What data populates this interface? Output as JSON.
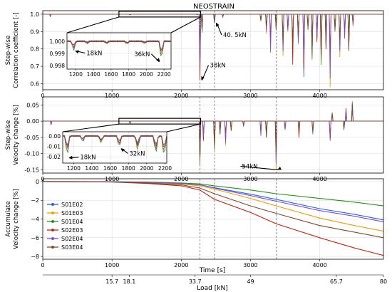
{
  "chart_data": [
    {
      "type": "line",
      "title": "NEOSTRAIN",
      "ylabel_lines": [
        "Step-wise",
        "Correlation coefficient [-]"
      ],
      "xlim": [
        0,
        4920
      ],
      "ylim": [
        0.565,
        1.02
      ],
      "xticks": [
        0,
        1000,
        2000,
        3000,
        4000
      ],
      "yticks": [
        0.6,
        0.7,
        0.8,
        0.9,
        1.0
      ],
      "ytick_labels": [
        "0.6",
        "0.7",
        "0.8",
        "0.9",
        "1.0"
      ],
      "grid": true,
      "dashed_vlines": [
        2270,
        2480,
        3370
      ],
      "baseline": 1.0,
      "series_colors": [
        "#2b5fd0",
        "#e0a010",
        "#2e8b22",
        "#b02a1a",
        "#7a4fc2",
        "#7a4a2e"
      ],
      "spikes": [
        {
          "x": 110,
          "y": 0.985
        },
        {
          "x": 1260,
          "y": 0.993
        },
        {
          "x": 2230,
          "y": 0.996
        },
        {
          "x": 2270,
          "y": 0.62
        },
        {
          "x": 2300,
          "y": 0.88
        },
        {
          "x": 2480,
          "y": 0.95
        },
        {
          "x": 2600,
          "y": 0.98
        },
        {
          "x": 3150,
          "y": 0.96
        },
        {
          "x": 3230,
          "y": 0.87
        },
        {
          "x": 3290,
          "y": 0.78
        },
        {
          "x": 3370,
          "y": 0.91
        },
        {
          "x": 3470,
          "y": 0.76
        },
        {
          "x": 3540,
          "y": 0.89
        },
        {
          "x": 3610,
          "y": 0.71
        },
        {
          "x": 3690,
          "y": 0.83
        },
        {
          "x": 3770,
          "y": 0.64
        },
        {
          "x": 3830,
          "y": 0.88
        },
        {
          "x": 3890,
          "y": 0.74
        },
        {
          "x": 3960,
          "y": 0.84
        },
        {
          "x": 4020,
          "y": 0.67
        },
        {
          "x": 4090,
          "y": 0.8
        },
        {
          "x": 4150,
          "y": 0.58
        },
        {
          "x": 4220,
          "y": 0.9
        },
        {
          "x": 4290,
          "y": 0.72
        },
        {
          "x": 4360,
          "y": 0.86
        },
        {
          "x": 4420,
          "y": 0.79
        },
        {
          "x": 4480,
          "y": 0.93
        }
      ],
      "annotations": [
        {
          "text": "40. 5kN",
          "x": 2480,
          "y": 0.95
        },
        {
          "text": "38kN",
          "x": 2270,
          "y": 0.62
        }
      ],
      "inset": {
        "xlim": [
          1100,
          2280
        ],
        "ylim": [
          0.9977,
          1.0007
        ],
        "xticks": [
          1200,
          1400,
          1600,
          1800,
          2000,
          2200
        ],
        "yticks": [
          0.998,
          0.999,
          1.0
        ],
        "ytick_labels": [
          "0.998",
          "0.999",
          "1.000"
        ],
        "zoom_range_x": [
          1100,
          2280
        ],
        "baseline": 1.0,
        "spikes": [
          {
            "x": 1175,
            "y": 0.9992
          },
          {
            "x": 1330,
            "y": 0.9998
          },
          {
            "x": 1550,
            "y": 0.9998
          },
          {
            "x": 1780,
            "y": 0.99975
          },
          {
            "x": 1980,
            "y": 0.9998
          },
          {
            "x": 2170,
            "y": 0.9983
          }
        ],
        "annotations": [
          {
            "text": "18kN",
            "x": 1175,
            "y": 0.9992
          },
          {
            "text": "36kN",
            "x": 2170,
            "y": 0.9983
          }
        ]
      }
    },
    {
      "type": "line",
      "ylabel_lines": [
        "Step-wise",
        "Velocity change [%]"
      ],
      "xlim": [
        0,
        4920
      ],
      "ylim": [
        -0.16,
        0.075
      ],
      "xticks": [
        0,
        1000,
        2000,
        3000,
        4000
      ],
      "yticks": [
        0.05,
        0.0,
        -0.05,
        -0.1,
        -0.15
      ],
      "ytick_labels": [
        "0.05",
        "0.00",
        "-0.05",
        "-0.10",
        "-0.15"
      ],
      "grid": true,
      "dashed_vlines": [
        2270,
        2480,
        3370
      ],
      "baseline": 0.0,
      "series_colors": [
        "#2b5fd0",
        "#e0a010",
        "#2e8b22",
        "#b02a1a",
        "#7a4fc2",
        "#7a4a2e"
      ],
      "spikes": [
        {
          "x": 120,
          "y": -0.012
        },
        {
          "x": 1260,
          "y": -0.01
        },
        {
          "x": 2270,
          "y": -0.135
        },
        {
          "x": 2320,
          "y": -0.06
        },
        {
          "x": 2480,
          "y": -0.1
        },
        {
          "x": 2560,
          "y": -0.04
        },
        {
          "x": 2640,
          "y": -0.075
        },
        {
          "x": 2720,
          "y": -0.03
        },
        {
          "x": 2900,
          "y": -0.02
        },
        {
          "x": 3150,
          "y": -0.045
        },
        {
          "x": 3230,
          "y": -0.05
        },
        {
          "x": 3370,
          "y": -0.15
        },
        {
          "x": 3500,
          "y": -0.03
        },
        {
          "x": 3700,
          "y": -0.05
        },
        {
          "x": 3900,
          "y": -0.04
        },
        {
          "x": 4150,
          "y": -0.06
        },
        {
          "x": 4350,
          "y": -0.035
        },
        {
          "x": 4470,
          "y": 0.06
        },
        {
          "x": 4380,
          "y": 0.04
        },
        {
          "x": 4180,
          "y": 0.03
        }
      ],
      "annotations": [
        {
          "text": "54kN",
          "x": 3370,
          "y": -0.15
        }
      ],
      "inset": {
        "xlim": [
          1080,
          2220
        ],
        "ylim": [
          -0.026,
          0.004
        ],
        "xticks": [
          1200,
          1400,
          1600,
          1800,
          2000,
          2200
        ],
        "yticks": [
          0.0,
          -0.01,
          -0.02
        ],
        "ytick_labels": [
          "0.00",
          "-0.01",
          "-0.02"
        ],
        "zoom_range_x": [
          1100,
          2280
        ],
        "baseline": 0.0,
        "spikes": [
          {
            "x": 1130,
            "y": -0.021
          },
          {
            "x": 1300,
            "y": -0.006
          },
          {
            "x": 1500,
            "y": -0.007
          },
          {
            "x": 1700,
            "y": -0.012
          },
          {
            "x": 1900,
            "y": -0.014
          },
          {
            "x": 2100,
            "y": -0.019
          },
          {
            "x": 2190,
            "y": -0.022
          }
        ],
        "annotations": [
          {
            "text": "18kN",
            "x": 1130,
            "y": -0.021
          },
          {
            "text": "32kN",
            "x": 1700,
            "y": -0.012
          }
        ]
      }
    },
    {
      "type": "line",
      "ylabel_lines": [
        "Accumulate",
        "Velocity change [%]"
      ],
      "xlim": [
        0,
        4920
      ],
      "ylim": [
        -8.3,
        0.3
      ],
      "xticks": [
        0,
        1000,
        2000,
        3000,
        4000
      ],
      "yticks": [
        0,
        -2,
        -4,
        -6,
        -8
      ],
      "ytick_labels": [
        "0",
        "−2",
        "−4",
        "−6",
        "−8"
      ],
      "grid": true,
      "dashed_vlines": [
        2270,
        2480,
        3370
      ],
      "xlabel": "Time [s]",
      "x2label": "Load [kN]",
      "x2ticks": [
        {
          "x": 1000,
          "label": "15.7"
        },
        {
          "x": 1250,
          "label": "18.1"
        },
        {
          "x": 2200,
          "label": "33.7"
        },
        {
          "x": 3000,
          "label": "49"
        },
        {
          "x": 4240,
          "label": "65.7"
        },
        {
          "x": 4920,
          "label": "80"
        }
      ],
      "legend_position": "left",
      "series": [
        {
          "name": "S01E02",
          "color": "#2b5fd0",
          "x": [
            0,
            1000,
            1500,
            2000,
            2270,
            2480,
            3000,
            3370,
            4000,
            4500,
            4920
          ],
          "y": [
            0,
            -0.02,
            -0.08,
            -0.2,
            -0.35,
            -0.65,
            -1.35,
            -1.9,
            -2.9,
            -3.5,
            -4.1
          ]
        },
        {
          "name": "S01E03",
          "color": "#e0a010",
          "x": [
            0,
            1000,
            1500,
            2000,
            2270,
            2480,
            3000,
            3370,
            4000,
            4500,
            4920
          ],
          "y": [
            0,
            -0.03,
            -0.1,
            -0.25,
            -0.45,
            -0.8,
            -1.8,
            -2.6,
            -3.9,
            -4.7,
            -5.3
          ]
        },
        {
          "name": "S01E04",
          "color": "#2e8b22",
          "x": [
            0,
            1000,
            1500,
            2000,
            2270,
            2480,
            3000,
            3370,
            4000,
            4500,
            4920
          ],
          "y": [
            0,
            -0.02,
            -0.06,
            -0.15,
            -0.25,
            -0.45,
            -0.9,
            -1.3,
            -1.8,
            -2.2,
            -2.6
          ]
        },
        {
          "name": "S02E03",
          "color": "#b02a1a",
          "x": [
            0,
            1000,
            1500,
            2000,
            2270,
            2480,
            3000,
            3370,
            4000,
            4500,
            4920
          ],
          "y": [
            0,
            -0.05,
            -0.2,
            -0.45,
            -0.9,
            -1.9,
            -3.3,
            -4.5,
            -6.0,
            -7.1,
            -7.9
          ]
        },
        {
          "name": "S02E04",
          "color": "#7a4fc2",
          "x": [
            0,
            1000,
            1500,
            2000,
            2270,
            2480,
            3000,
            3370,
            4000,
            4500,
            4920
          ],
          "y": [
            0,
            -0.02,
            -0.08,
            -0.2,
            -0.35,
            -0.7,
            -1.5,
            -2.1,
            -3.1,
            -3.7,
            -4.3
          ]
        },
        {
          "name": "S03E04",
          "color": "#7a4a2e",
          "x": [
            0,
            1000,
            1500,
            2000,
            2270,
            2480,
            3000,
            3370,
            4000,
            4500,
            4920
          ],
          "y": [
            0,
            -0.04,
            -0.15,
            -0.35,
            -0.7,
            -1.3,
            -2.6,
            -3.4,
            -4.7,
            -5.4,
            -6.0
          ]
        }
      ]
    }
  ]
}
